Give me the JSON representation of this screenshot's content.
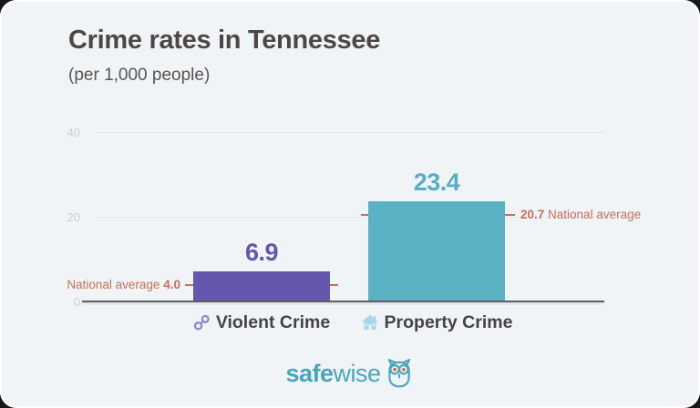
{
  "header": {
    "title": "Crime rates in Tennessee",
    "subtitle": "(per 1,000 people)"
  },
  "chart_data": {
    "type": "bar",
    "title": "Crime rates in Tennessee",
    "subtitle": "(per 1,000 people)",
    "categories": [
      "Violent Crime",
      "Property Crime"
    ],
    "values": [
      6.9,
      23.4
    ],
    "national_averages": [
      4.0,
      20.7
    ],
    "ylim": [
      0,
      40
    ],
    "yticks": [
      "40",
      "20",
      "0"
    ],
    "grid": "horizontal-light",
    "bar_colors": [
      "#6457ad",
      "#5bb1c4"
    ],
    "annotation_color": "#c96f57",
    "category_icons": [
      "handcuffs-icon",
      "house-icon"
    ]
  },
  "values_display": {
    "violent": "6.9",
    "property": "23.4"
  },
  "annotations": {
    "violent_text": "National average ",
    "violent_value": "4.0",
    "property_value": "20.7",
    "property_text": " National average"
  },
  "logo": {
    "brand_bold": "safe",
    "brand_light": "wise"
  },
  "colors": {
    "card_background": "#f0f4f7",
    "title_text": "#4d4644",
    "violent_purple": "#6457ad",
    "property_teal": "#5bb1c4",
    "national_average_line": "#c96f57",
    "brand_teal": "#4aa5ba",
    "axis_line": "#5d5e61"
  }
}
